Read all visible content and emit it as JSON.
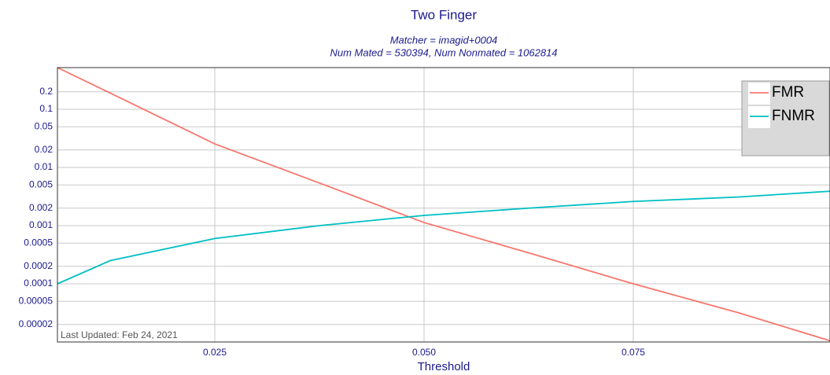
{
  "chart_data": {
    "type": "line",
    "title": "Two Finger",
    "subtitle": [
      "Matcher = imagid+0004",
      "Num Mated = 530394, Num Nonmated = 1062814"
    ],
    "x_label": "Threshold",
    "annotation": "Last Updated: Feb 24, 2021",
    "x": [
      0.0062,
      0.0125,
      0.025,
      0.0375,
      0.05,
      0.0625,
      0.075,
      0.0875,
      0.0985
    ],
    "series": [
      {
        "name": "FMR",
        "color": "#f8766d",
        "values": [
          0.52,
          0.19,
          0.0254,
          0.0054,
          0.00113,
          0.00034,
          0.0001,
          3.2e-05,
          1.05e-05
        ]
      },
      {
        "name": "FNMR",
        "color": "#00bfc4",
        "values": [
          0.0001,
          0.00025,
          0.0006,
          0.001,
          0.0015,
          0.002,
          0.0026,
          0.0031,
          0.0039
        ]
      }
    ],
    "xlim": [
      0.0062,
      0.0985
    ],
    "xticks": [
      0.025,
      {
        "value": 0.05,
        "label": "0.050"
      },
      0.075
    ],
    "ylim": [
      1e-05,
      0.52
    ],
    "yticks": [
      2e-05,
      5e-05,
      0.0001,
      0.0002,
      0.0005,
      0.001,
      0.002,
      0.005,
      0.01,
      0.02,
      0.05,
      0.1,
      0.2
    ],
    "log_y": true,
    "grid": true,
    "legend": "top-right"
  }
}
